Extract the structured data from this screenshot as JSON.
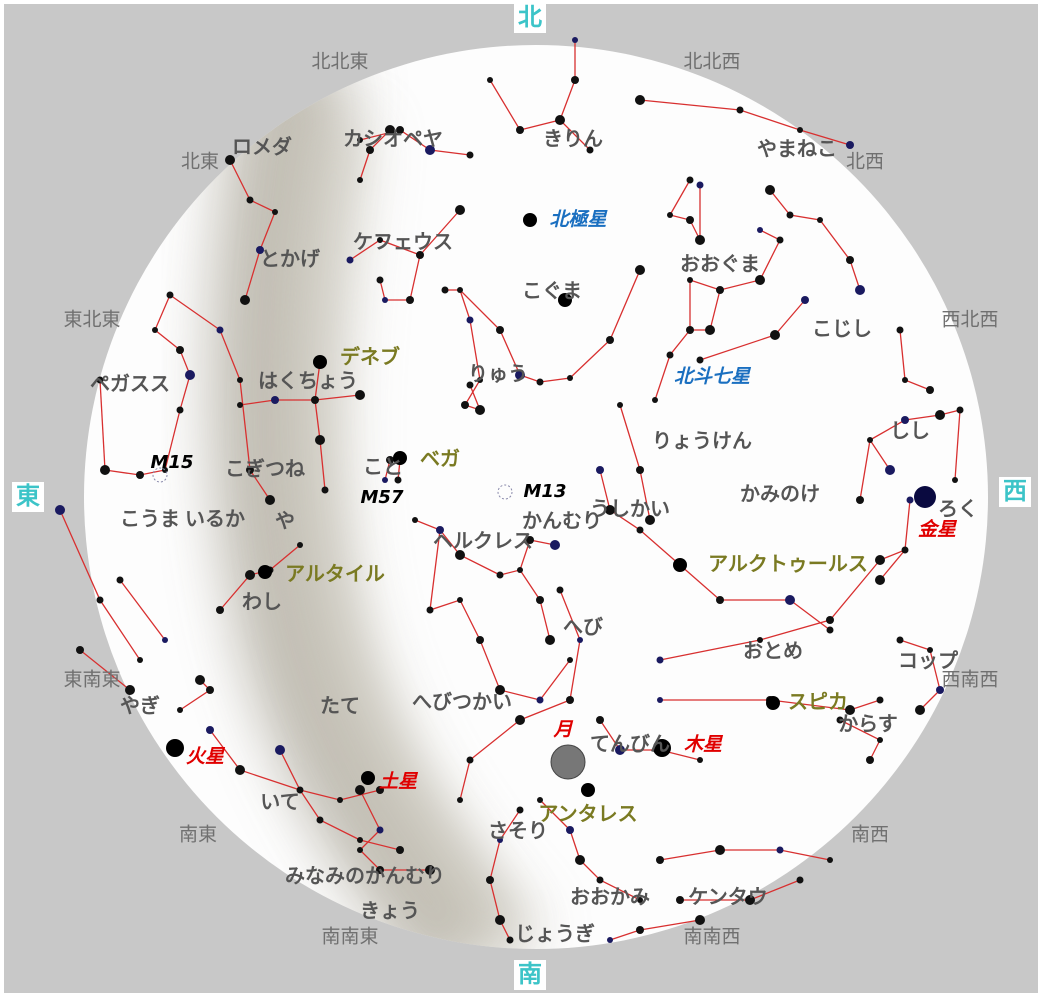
{
  "directions": {
    "cardinal": [
      "北",
      "東",
      "西",
      "南"
    ],
    "intercardinal": [
      "北北東",
      "北北西",
      "北東",
      "北西",
      "東北東",
      "西北西",
      "東南東",
      "西南西",
      "南東",
      "南西",
      "南南東",
      "南南西"
    ]
  },
  "constellations": [
    "ロメダ",
    "カシオペヤ",
    "きりん",
    "やまねこ",
    "とかげ",
    "ケフェウス",
    "こぐま",
    "おおぐま",
    "こじし",
    "ペガスス",
    "はくちょう",
    "りゅう",
    "りょうけん",
    "しし",
    "こぎつね",
    "こと",
    "かみのけ",
    "こうま",
    "いるか",
    "や",
    "ヘルクレス",
    "かんむり",
    "うしかい",
    "わし",
    "へび",
    "おとめ",
    "コップ",
    "たて",
    "へびつかい",
    "からす",
    "やぎ",
    "てんびん",
    "いて",
    "さそり",
    "みなみのかんむり",
    "きょう",
    "おおかみ",
    "ケンタウ",
    "じょうぎ",
    "ろく"
  ],
  "bright_stars": [
    "デネブ",
    "ベガ",
    "アルタイル",
    "アルクトゥールス",
    "スピカ",
    "アンタレス"
  ],
  "pole_labels": [
    "北極星",
    "北斗七星"
  ],
  "deep_sky": [
    "M15",
    "M57",
    "M13"
  ],
  "planets": [
    "金星",
    "火星",
    "木星",
    "土星",
    "月"
  ]
}
